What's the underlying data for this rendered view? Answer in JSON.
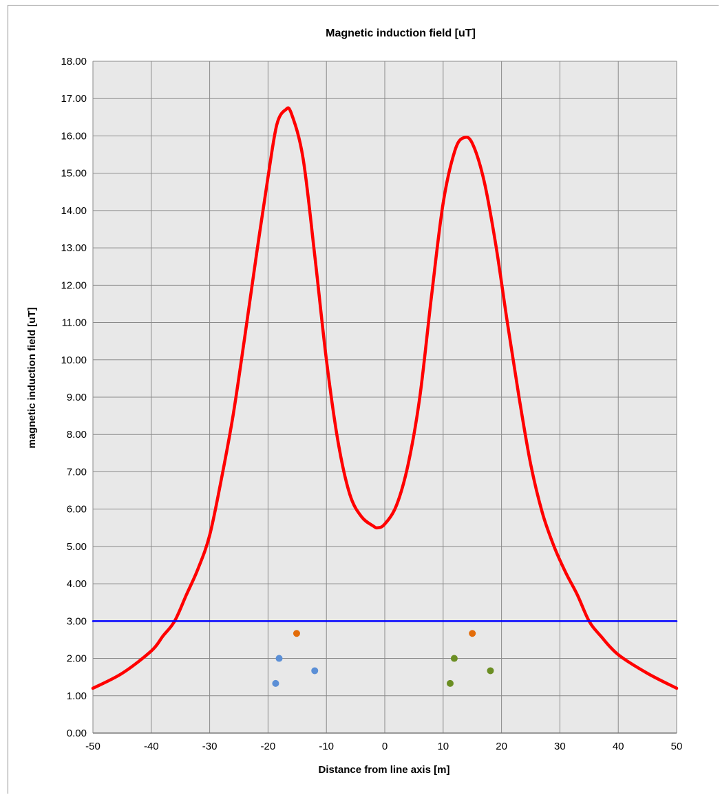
{
  "chart_data": {
    "type": "line",
    "title": "Magnetic induction field [uT]",
    "xlabel": "Distance from line axis [m]",
    "ylabel": "magnetic induction field [uT]",
    "xlim": [
      -50,
      50
    ],
    "ylim": [
      0,
      18
    ],
    "x_ticks": [
      "-50",
      "-40",
      "-30",
      "-20",
      "-10",
      "0",
      "10",
      "20",
      "30",
      "40",
      "50"
    ],
    "y_ticks": [
      "0.00",
      "1.00",
      "2.00",
      "3.00",
      "4.00",
      "5.00",
      "6.00",
      "7.00",
      "8.00",
      "9.00",
      "10.00",
      "11.00",
      "12.00",
      "13.00",
      "14.00",
      "15.00",
      "16.00",
      "17.00",
      "18.00"
    ],
    "grid": true,
    "background_color": "#e8e8e8",
    "series": [
      {
        "color": "#ff0000",
        "style": "line",
        "points": [
          [
            -50,
            1.2
          ],
          [
            -45,
            1.6
          ],
          [
            -40,
            2.2
          ],
          [
            -38,
            2.6
          ],
          [
            -36,
            3.0
          ],
          [
            -34,
            3.7
          ],
          [
            -32,
            4.4
          ],
          [
            -30,
            5.3
          ],
          [
            -28,
            6.8
          ],
          [
            -26,
            8.5
          ],
          [
            -24,
            10.6
          ],
          [
            -22,
            12.8
          ],
          [
            -20,
            14.9
          ],
          [
            -18.5,
            16.3
          ],
          [
            -17,
            16.7
          ],
          [
            -16,
            16.6
          ],
          [
            -14,
            15.4
          ],
          [
            -12,
            12.8
          ],
          [
            -10,
            10.0
          ],
          [
            -8,
            7.8
          ],
          [
            -6,
            6.4
          ],
          [
            -4,
            5.8
          ],
          [
            -2,
            5.55
          ],
          [
            -1.2,
            5.5
          ],
          [
            0,
            5.6
          ],
          [
            2,
            6.1
          ],
          [
            4,
            7.2
          ],
          [
            6,
            9.0
          ],
          [
            8,
            11.7
          ],
          [
            10,
            14.2
          ],
          [
            12,
            15.6
          ],
          [
            13.5,
            15.95
          ],
          [
            15,
            15.8
          ],
          [
            17,
            14.8
          ],
          [
            19,
            13.1
          ],
          [
            21,
            11.0
          ],
          [
            23,
            9.0
          ],
          [
            25,
            7.2
          ],
          [
            27,
            5.9
          ],
          [
            29,
            5.0
          ],
          [
            31,
            4.3
          ],
          [
            33,
            3.7
          ],
          [
            35,
            3.0
          ],
          [
            37,
            2.6
          ],
          [
            40,
            2.1
          ],
          [
            45,
            1.6
          ],
          [
            50,
            1.2
          ]
        ]
      },
      {
        "color": "#0000ff",
        "style": "line",
        "points": [
          [
            -50,
            3.0
          ],
          [
            50,
            3.0
          ]
        ]
      },
      {
        "color": "#5b8fd6",
        "style": "scatter",
        "points": [
          [
            -18.7,
            1.33
          ],
          [
            -18.1,
            2.0
          ],
          [
            -12,
            1.67
          ]
        ]
      },
      {
        "color": "#e36c09",
        "style": "scatter",
        "points": [
          [
            -15.1,
            2.67
          ],
          [
            15.0,
            2.67
          ]
        ]
      },
      {
        "color": "#6b8e23",
        "style": "scatter",
        "points": [
          [
            11.2,
            1.33
          ],
          [
            11.9,
            2.0
          ],
          [
            18.1,
            1.67
          ]
        ]
      }
    ]
  }
}
